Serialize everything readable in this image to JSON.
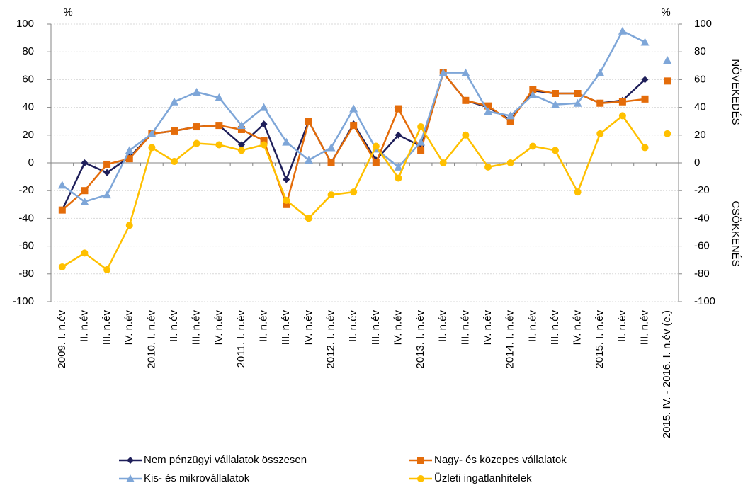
{
  "chart_data": {
    "type": "line",
    "y_label": "%",
    "y2_label": "%",
    "annotations": [
      "NÖVEKEDÉS",
      "CSÖKKENÉS"
    ],
    "categories": [
      "2009. I. n.év",
      "II. n.év",
      "III. n.év",
      "IV. n.év",
      "2010. I. n.év",
      "II. n.év",
      "III. n.év",
      "IV. n.év",
      "2011. I. n.év",
      "II. n.év",
      "III. n.év",
      "IV. n.év",
      "2012. I. n.év",
      "II. n.év",
      "III. n.év",
      "IV. n.év",
      "2013. I. n.év",
      "II. n.év",
      "III. n.év",
      "IV. n.év",
      "2014. I. n.év",
      "II. n.év",
      "III. n.év",
      "IV. n.év",
      "2015. I. n.év",
      "II. n.év",
      "III. n.év",
      "2015. IV. - 2016. I. n.év (e.)"
    ],
    "unconnected_last_point": true,
    "series": [
      {
        "name": "Nem pénzügyi vállalatok összesen",
        "color": "#1f1f5a",
        "marker": "diamond",
        "values": [
          -34,
          0,
          -7,
          4,
          21,
          23,
          26,
          27,
          13,
          28,
          -12,
          30,
          0,
          28,
          2,
          20,
          12,
          65,
          45,
          40,
          31,
          52,
          50,
          50,
          43,
          45,
          60,
          null
        ]
      },
      {
        "name": "Nagy- és közepes vállalatok",
        "color": "#e46c0a",
        "marker": "square",
        "values": [
          -34,
          -20,
          -1,
          3,
          21,
          23,
          26,
          27,
          24,
          16,
          -30,
          30,
          0,
          27,
          0,
          39,
          9,
          65,
          45,
          41,
          30,
          53,
          50,
          50,
          43,
          44,
          46,
          59
        ]
      },
      {
        "name": "Kis- és mikrovállalatok",
        "color": "#7ea6d8",
        "marker": "triangle",
        "values": [
          -16,
          -28,
          -23,
          9,
          21,
          44,
          51,
          47,
          27,
          40,
          15,
          2,
          11,
          39,
          10,
          -3,
          15,
          65,
          65,
          37,
          34,
          49,
          42,
          43,
          65,
          95,
          87,
          74
        ]
      },
      {
        "name": "Üzleti ingatlanhitelek",
        "color": "#ffc000",
        "marker": "circle",
        "values": [
          -75,
          -65,
          -77,
          -45,
          11,
          1,
          14,
          13,
          9,
          13,
          -27,
          -40,
          -23,
          -21,
          12,
          -11,
          26,
          0,
          20,
          -3,
          0,
          12,
          9,
          -21,
          21,
          34,
          11,
          21
        ]
      }
    ],
    "ylim": [
      -100,
      100
    ],
    "yticks": [
      -100,
      -80,
      -60,
      -40,
      -20,
      0,
      20,
      40,
      60,
      80,
      100
    ],
    "y2lim": [
      -100,
      100
    ],
    "y2ticks": [
      -100,
      -80,
      -60,
      -40,
      -20,
      0,
      20,
      40,
      60,
      80,
      100
    ],
    "grid": true
  }
}
